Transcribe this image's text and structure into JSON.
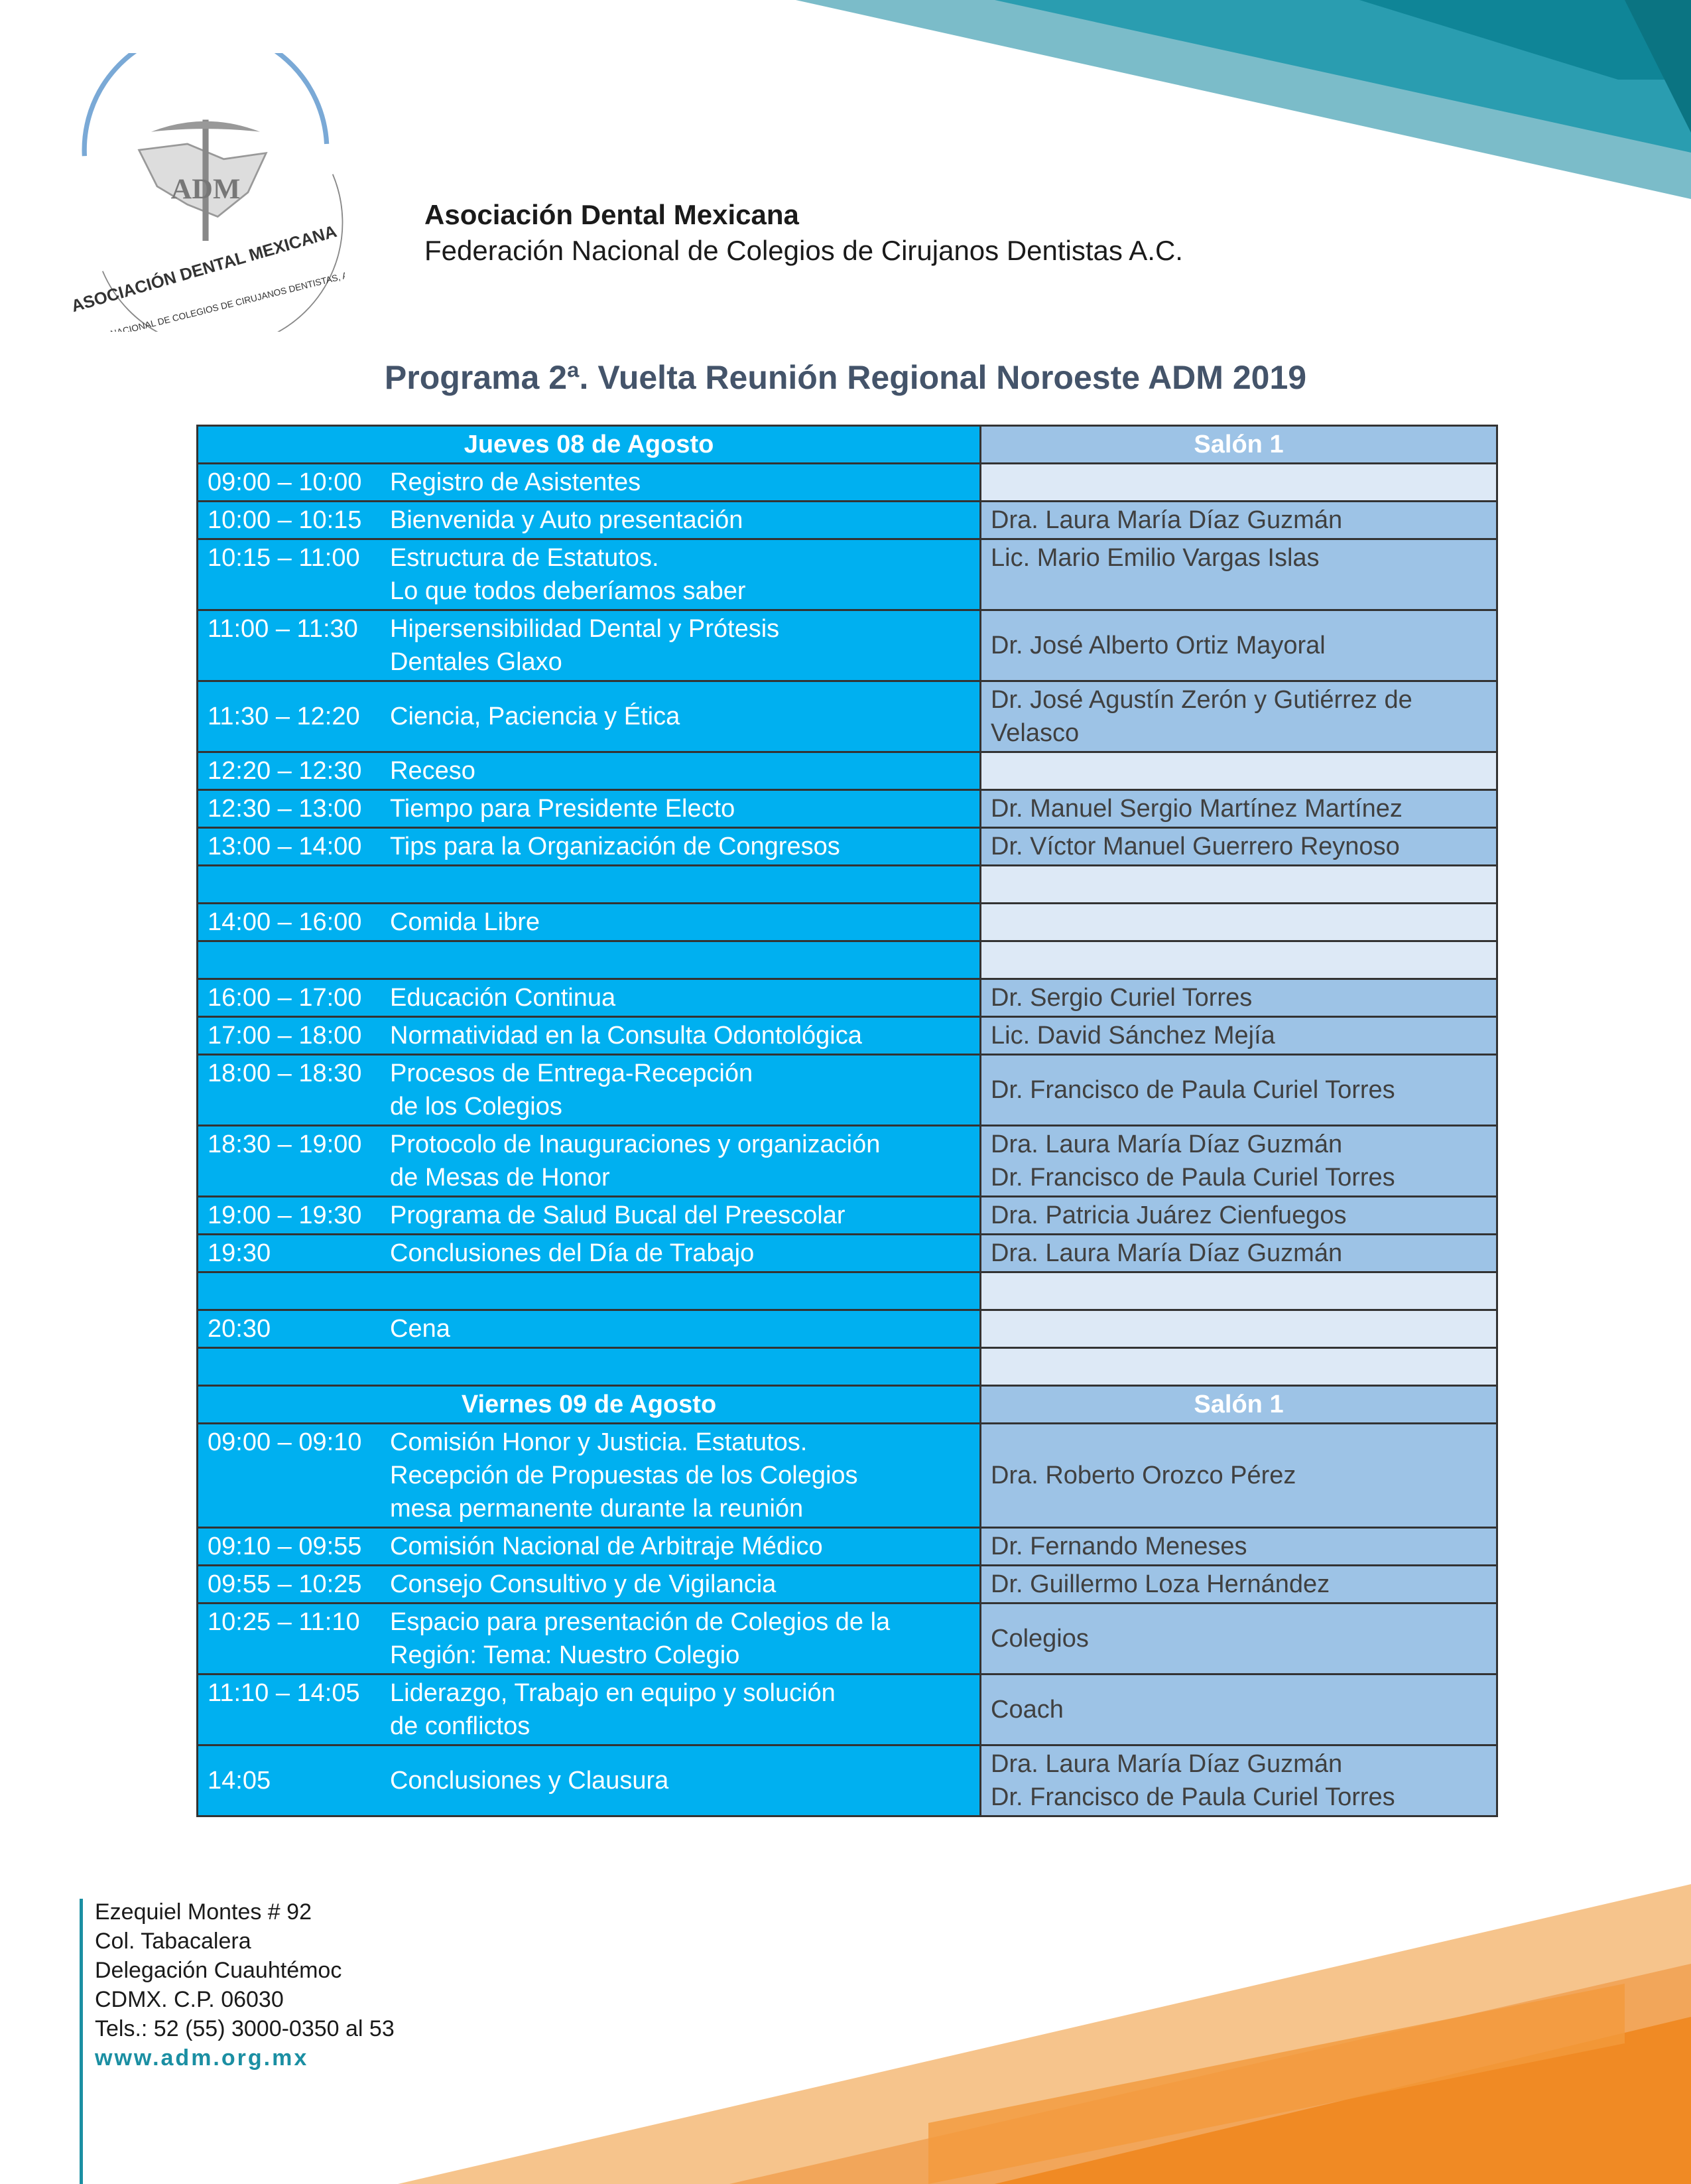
{
  "header": {
    "org_name": "Asociación Dental Mexicana",
    "federation": "Federación Nacional de Colegios de Cirujanos Dentistas A.C.",
    "logo_text": "ASOCIACIÓN DENTAL MEXICANA · FEDERACIÓN NACIONAL DE COLEGIOS DE CIRUJANOS DENTISTAS, A.C. · ADM"
  },
  "title": "Programa 2ª. Vuelta Reunión Regional Noroeste ADM 2019",
  "colors": {
    "left_cell": "#00b0f0",
    "right_cell": "#9dc3e6",
    "empty_cell": "#dde9f6",
    "title": "#44546a",
    "teal": "#1b8fa3",
    "orange": "#f08a24"
  },
  "days": [
    {
      "header": "Jueves 08 de Agosto",
      "room": "Salón 1",
      "rows": [
        {
          "time": "09:00 – 10:00",
          "topic": [
            "Registro de Asistentes"
          ],
          "speaker": []
        },
        {
          "time": "10:00 – 10:15",
          "topic": [
            "Bienvenida y Auto presentación"
          ],
          "speaker": [
            "Dra. Laura María Díaz Guzmán"
          ]
        },
        {
          "time": "10:15 – 11:00",
          "topic": [
            "Estructura de Estatutos.",
            "Lo que todos deberíamos saber"
          ],
          "speaker": [
            "Lic. Mario Emilio Vargas Islas"
          ]
        },
        {
          "time": "11:00 – 11:30",
          "topic": [
            "Hipersensibilidad Dental y Prótesis",
            "Dentales Glaxo"
          ],
          "speaker": [
            "Dr. José Alberto Ortiz Mayoral"
          ]
        },
        {
          "time": "11:30 – 12:20",
          "topic": [
            "Ciencia, Paciencia y Ética"
          ],
          "speaker": [
            "Dr. José Agustín Zerón y Gutiérrez de",
            "Velasco"
          ]
        },
        {
          "time": "12:20 – 12:30",
          "topic": [
            "Receso"
          ],
          "speaker": []
        },
        {
          "time": "12:30 – 13:00",
          "topic": [
            "Tiempo para Presidente Electo"
          ],
          "speaker": [
            "Dr. Manuel Sergio Martínez Martínez"
          ]
        },
        {
          "time": "13:00 – 14:00",
          "topic": [
            "Tips para la Organización de Congresos"
          ],
          "speaker": [
            "Dr. Víctor Manuel Guerrero Reynoso"
          ]
        },
        {
          "time": "",
          "topic": [],
          "speaker": []
        },
        {
          "time": "14:00 – 16:00",
          "topic": [
            "Comida Libre"
          ],
          "speaker": []
        },
        {
          "time": "",
          "topic": [],
          "speaker": []
        },
        {
          "time": "16:00 – 17:00",
          "topic": [
            "Educación Continua"
          ],
          "speaker": [
            "Dr. Sergio Curiel Torres"
          ]
        },
        {
          "time": "17:00 – 18:00",
          "topic": [
            "Normatividad en la Consulta Odontológica"
          ],
          "speaker": [
            "Lic. David Sánchez Mejía"
          ]
        },
        {
          "time": "18:00 – 18:30",
          "topic": [
            "Procesos de Entrega-Recepción",
            "de los Colegios"
          ],
          "speaker": [
            "Dr. Francisco de Paula Curiel Torres"
          ]
        },
        {
          "time": "18:30 – 19:00",
          "topic": [
            "Protocolo de Inauguraciones y organización",
            "de Mesas de Honor"
          ],
          "speaker": [
            "Dra. Laura María Díaz Guzmán",
            "Dr. Francisco de Paula Curiel Torres"
          ]
        },
        {
          "time": "19:00 – 19:30",
          "topic": [
            "Programa de Salud Bucal del Preescolar"
          ],
          "speaker": [
            "Dra. Patricia Juárez Cienfuegos"
          ]
        },
        {
          "time": "19:30",
          "topic": [
            "Conclusiones del Día de Trabajo"
          ],
          "speaker": [
            "Dra. Laura María Díaz Guzmán"
          ]
        },
        {
          "time": "",
          "topic": [],
          "speaker": []
        },
        {
          "time": "20:30",
          "topic": [
            "Cena"
          ],
          "speaker": []
        },
        {
          "time": "",
          "topic": [],
          "speaker": []
        }
      ]
    },
    {
      "header": "Viernes 09 de Agosto",
      "room": "Salón 1",
      "rows": [
        {
          "time": "09:00 – 09:10",
          "topic": [
            "Comisión Honor y Justicia. Estatutos.",
            "Recepción de Propuestas de los Colegios",
            "mesa permanente durante la reunión"
          ],
          "speaker": [
            "Dra. Roberto Orozco Pérez"
          ]
        },
        {
          "time": "09:10 – 09:55",
          "topic": [
            "Comisión Nacional de Arbitraje Médico"
          ],
          "speaker": [
            "Dr. Fernando Meneses"
          ]
        },
        {
          "time": "09:55 – 10:25",
          "topic": [
            "Consejo Consultivo y de Vigilancia"
          ],
          "speaker": [
            "Dr. Guillermo Loza Hernández"
          ]
        },
        {
          "time": "10:25 – 11:10",
          "topic": [
            "Espacio para presentación de Colegios de la",
            "Región: Tema: Nuestro Colegio"
          ],
          "speaker": [
            "Colegios"
          ]
        },
        {
          "time": "11:10 – 14:05",
          "topic": [
            "Liderazgo, Trabajo en equipo y solución",
            "de conflictos"
          ],
          "speaker": [
            "Coach"
          ]
        },
        {
          "time": "14:05",
          "topic": [
            "Conclusiones y Clausura"
          ],
          "speaker": [
            "Dra. Laura María Díaz Guzmán",
            "Dr. Francisco de Paula Curiel Torres"
          ]
        }
      ]
    }
  ],
  "footer": {
    "lines": [
      "Ezequiel Montes # 92",
      "Col. Tabacalera",
      "Delegación Cuauhtémoc",
      "CDMX. C.P. 06030",
      "Tels.: 52 (55) 3000-0350 al 53"
    ],
    "website": "www.adm.org.mx"
  }
}
